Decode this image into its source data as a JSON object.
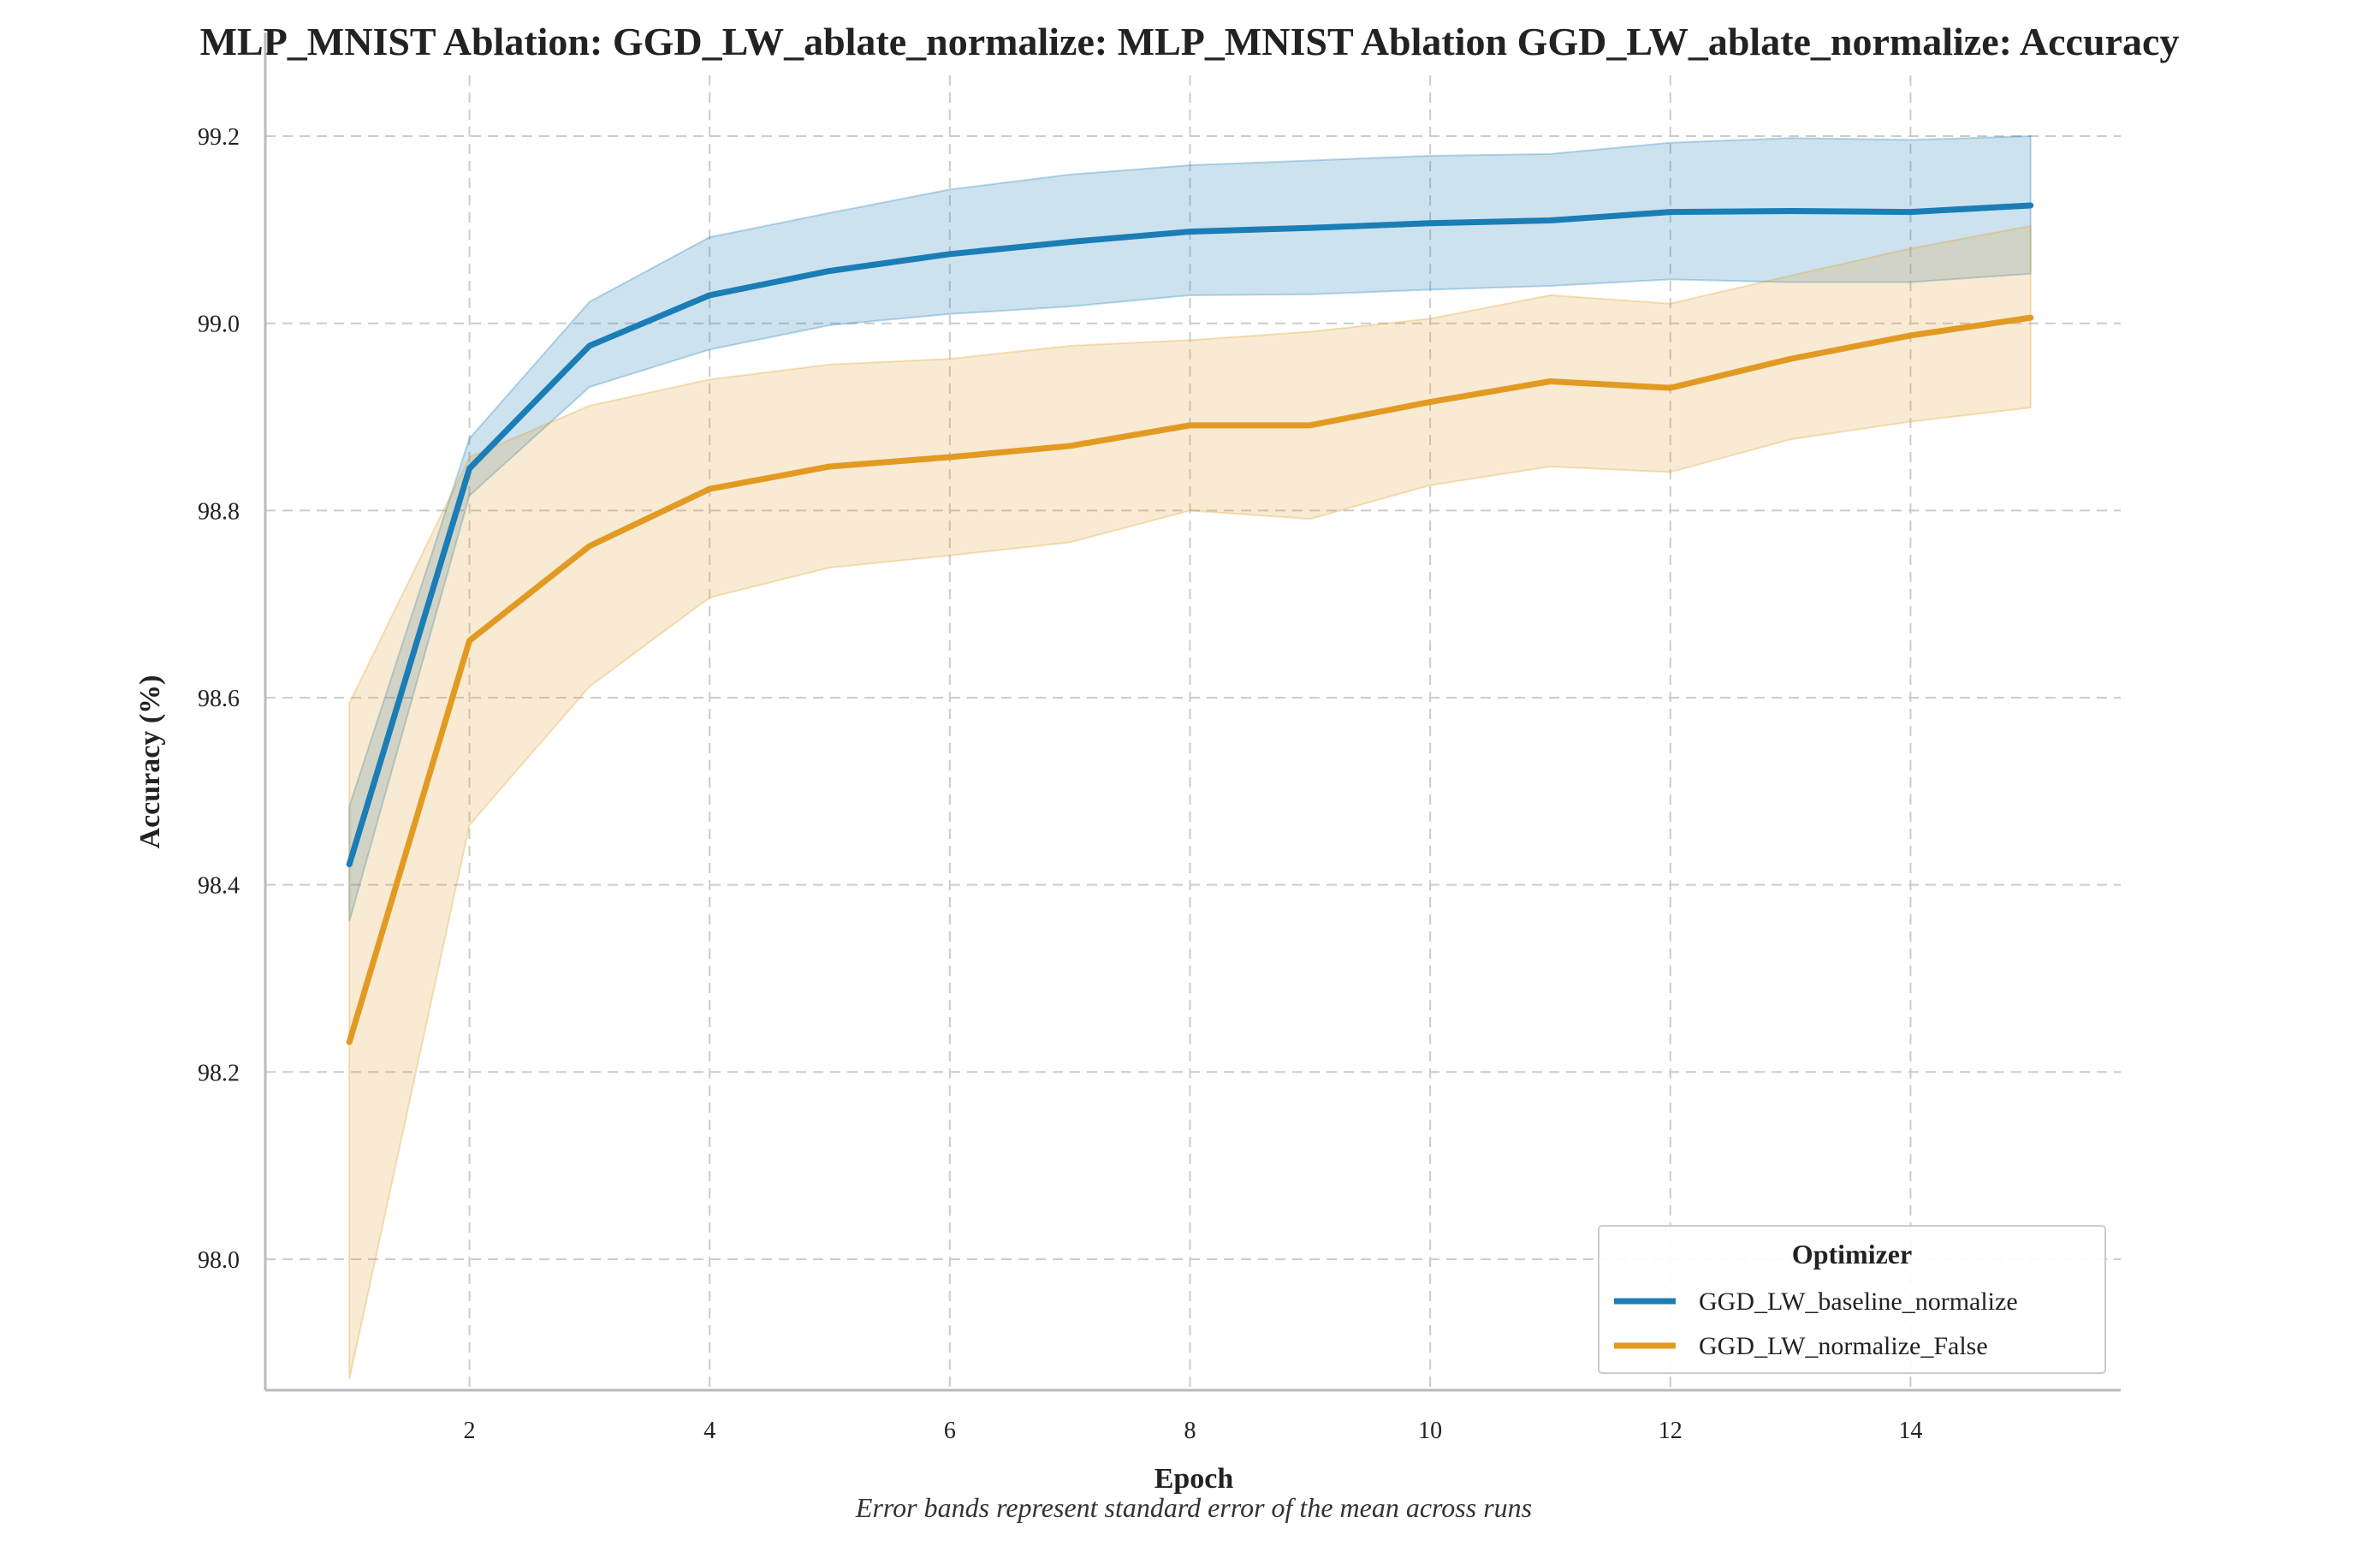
{
  "chart_data": {
    "type": "line",
    "title": "MLP_MNIST Ablation: GGD_LW_ablate_normalize: MLP_MNIST Ablation GGD_LW_ablate_normalize: Accuracy",
    "xlabel": "Epoch",
    "ylabel": "Accuracy (%)",
    "caption": "Error bands represent standard error of the mean across runs",
    "xlim": [
      0.3,
      15.75
    ],
    "ylim": [
      97.86,
      99.265
    ],
    "x_ticks": [
      2,
      4,
      6,
      8,
      10,
      12,
      14
    ],
    "y_ticks": [
      98.0,
      98.2,
      98.4,
      98.6,
      98.8,
      99.0,
      99.2
    ],
    "grid": true,
    "legend": {
      "title": "Optimizer",
      "placement": "lower-right"
    },
    "x": [
      1,
      2,
      3,
      4,
      5,
      6,
      7,
      8,
      9,
      10,
      11,
      12,
      13,
      14,
      15
    ],
    "series": [
      {
        "name": "GGD_LW_baseline_normalize",
        "color": "#1a7db6",
        "values": [
          98.422,
          98.845,
          98.976,
          99.03,
          99.056,
          99.074,
          99.087,
          99.098,
          99.102,
          99.107,
          99.11,
          99.119,
          99.12,
          99.119,
          99.126
        ],
        "lower": [
          98.361,
          98.816,
          98.932,
          98.972,
          98.998,
          99.01,
          99.018,
          99.03,
          99.031,
          99.036,
          99.04,
          99.047,
          99.044,
          99.044,
          99.053
        ],
        "upper": [
          98.484,
          98.877,
          99.023,
          99.092,
          99.118,
          99.143,
          99.159,
          99.169,
          99.174,
          99.179,
          99.181,
          99.193,
          99.198,
          99.196,
          99.2
        ]
      },
      {
        "name": "GGD_LW_normalize_False",
        "color": "#e29a23",
        "values": [
          98.232,
          98.661,
          98.762,
          98.823,
          98.847,
          98.857,
          98.869,
          98.891,
          98.891,
          98.916,
          98.938,
          98.931,
          98.962,
          98.987,
          99.006
        ],
        "lower": [
          97.872,
          98.464,
          98.612,
          98.707,
          98.739,
          98.752,
          98.766,
          98.8,
          98.791,
          98.827,
          98.847,
          98.841,
          98.876,
          98.895,
          98.91
        ],
        "upper": [
          98.594,
          98.857,
          98.912,
          98.94,
          98.956,
          98.962,
          98.976,
          98.982,
          98.991,
          99.005,
          99.03,
          99.021,
          99.051,
          99.08,
          99.104
        ]
      }
    ]
  }
}
